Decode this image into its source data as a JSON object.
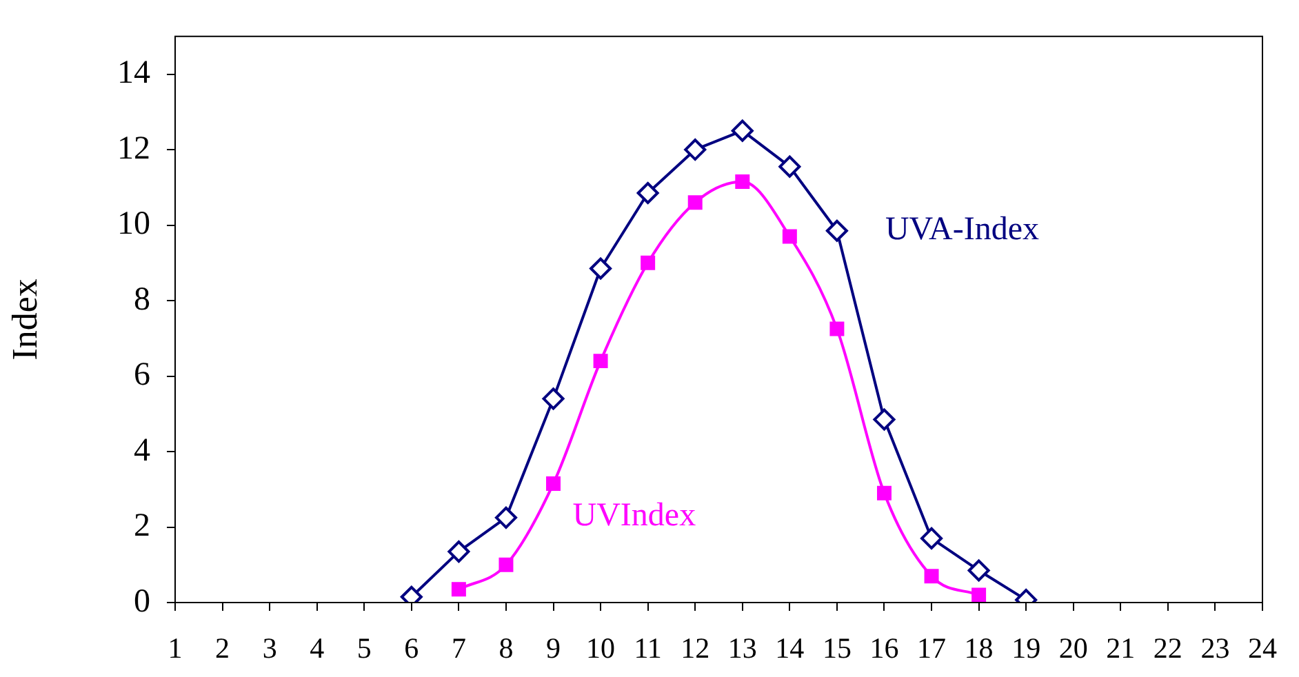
{
  "chart_data": {
    "type": "line",
    "ylabel": "Index",
    "xlim": [
      1,
      24
    ],
    "xticks": [
      1,
      2,
      3,
      4,
      5,
      6,
      7,
      8,
      9,
      10,
      11,
      12,
      13,
      14,
      15,
      16,
      17,
      18,
      19,
      20,
      21,
      22,
      23,
      24
    ],
    "ylim": [
      0,
      15
    ],
    "yticks": [
      0,
      2,
      4,
      6,
      8,
      10,
      12,
      14
    ],
    "grid": false,
    "legend": false,
    "series": [
      {
        "name": "UVA-Index",
        "color": "#000080",
        "marker": "diamond",
        "x": [
          6,
          7,
          8,
          9,
          10,
          11,
          12,
          13,
          14,
          15,
          16,
          17,
          18,
          19
        ],
        "values": [
          0.15,
          1.35,
          2.25,
          5.4,
          8.85,
          10.85,
          12.0,
          12.5,
          11.55,
          9.85,
          4.85,
          1.7,
          0.85,
          0.07
        ]
      },
      {
        "name": "UVIndex",
        "color": "#ff00ff",
        "marker": "square",
        "x": [
          7,
          8,
          9,
          10,
          11,
          12,
          13,
          14,
          15,
          16,
          17,
          18
        ],
        "values": [
          0.35,
          1.0,
          3.15,
          6.4,
          9.0,
          10.6,
          11.15,
          9.7,
          7.25,
          2.9,
          0.7,
          0.2
        ]
      }
    ]
  }
}
